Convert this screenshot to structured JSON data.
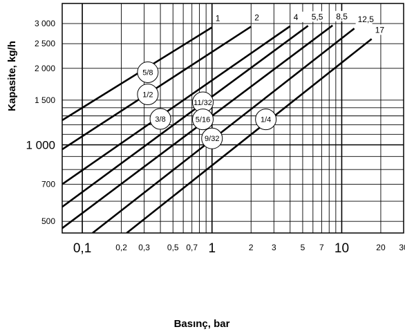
{
  "chart_data": {
    "type": "line",
    "xlabel": "Basınç, bar",
    "ylabel": "Kapasite, kg/h",
    "x_scale": "log",
    "y_scale": "log",
    "xlim": [
      0.07,
      30
    ],
    "ylim": [
      450,
      3600
    ],
    "grid": true,
    "y_ticks": [
      {
        "value": 3000,
        "label": "3 000",
        "big": false
      },
      {
        "value": 2500,
        "label": "2 500",
        "big": false
      },
      {
        "value": 2000,
        "label": "2 000",
        "big": false
      },
      {
        "value": 1500,
        "label": "1 500",
        "big": false
      },
      {
        "value": 1000,
        "label": "1 000",
        "big": true
      },
      {
        "value": 700,
        "label": "700",
        "big": false
      },
      {
        "value": 500,
        "label": "500",
        "big": false
      }
    ],
    "y_grid": [
      500,
      600,
      700,
      800,
      900,
      1000,
      1100,
      1200,
      1300,
      1400,
      1500,
      2000,
      2500,
      3000
    ],
    "x_ticks": [
      {
        "value": 0.1,
        "label": "0,1",
        "big": true
      },
      {
        "value": 0.2,
        "label": "0,2",
        "big": false
      },
      {
        "value": 0.3,
        "label": "0,3",
        "big": false
      },
      {
        "value": 0.5,
        "label": "0,5",
        "big": false
      },
      {
        "value": 0.7,
        "label": "0,7",
        "big": false
      },
      {
        "value": 1,
        "label": "1",
        "big": true
      },
      {
        "value": 2,
        "label": "2",
        "big": false
      },
      {
        "value": 3,
        "label": "3",
        "big": false
      },
      {
        "value": 5,
        "label": "5",
        "big": false
      },
      {
        "value": 7,
        "label": "7",
        "big": false
      },
      {
        "value": 10,
        "label": "10",
        "big": true
      },
      {
        "value": 20,
        "label": "20",
        "big": false
      },
      {
        "value": 30,
        "label": "30",
        "big": false
      }
    ],
    "x_grid": [
      0.1,
      0.2,
      0.3,
      0.4,
      0.5,
      0.6,
      0.7,
      0.8,
      0.9,
      1,
      2,
      3,
      4,
      5,
      6,
      7,
      8,
      9,
      10,
      20,
      30
    ],
    "x_grid_major": [
      0.1,
      1,
      10
    ],
    "series": [
      {
        "name": "1",
        "points": [
          [
            0.07,
            1250
          ],
          [
            1,
            2900
          ]
        ]
      },
      {
        "name": "2",
        "points": [
          [
            0.07,
            960
          ],
          [
            2,
            2920
          ]
        ]
      },
      {
        "name": "4",
        "points": [
          [
            0.07,
            700
          ],
          [
            4,
            2930
          ]
        ]
      },
      {
        "name": "5,5",
        "points": [
          [
            0.07,
            570
          ],
          [
            5.5,
            2940
          ]
        ]
      },
      {
        "name": "8,5",
        "points": [
          [
            0.07,
            470
          ],
          [
            8.5,
            2950
          ]
        ]
      },
      {
        "name": "12,5",
        "points": [
          [
            0.12,
            450
          ],
          [
            12.5,
            2870
          ]
        ]
      },
      {
        "name": "17",
        "points": [
          [
            0.22,
            450
          ],
          [
            17,
            2610
          ]
        ]
      }
    ],
    "orifice_labels": [
      {
        "text": "5/8",
        "x": 0.32,
        "y": 1930
      },
      {
        "text": "1/2",
        "x": 0.32,
        "y": 1580
      },
      {
        "text": "3/8",
        "x": 0.4,
        "y": 1265
      },
      {
        "text": "11/32",
        "x": 0.85,
        "y": 1470
      },
      {
        "text": "5/16",
        "x": 0.85,
        "y": 1260
      },
      {
        "text": "9/32",
        "x": 1.0,
        "y": 1060
      },
      {
        "text": "1/4",
        "x": 2.6,
        "y": 1260
      }
    ]
  }
}
